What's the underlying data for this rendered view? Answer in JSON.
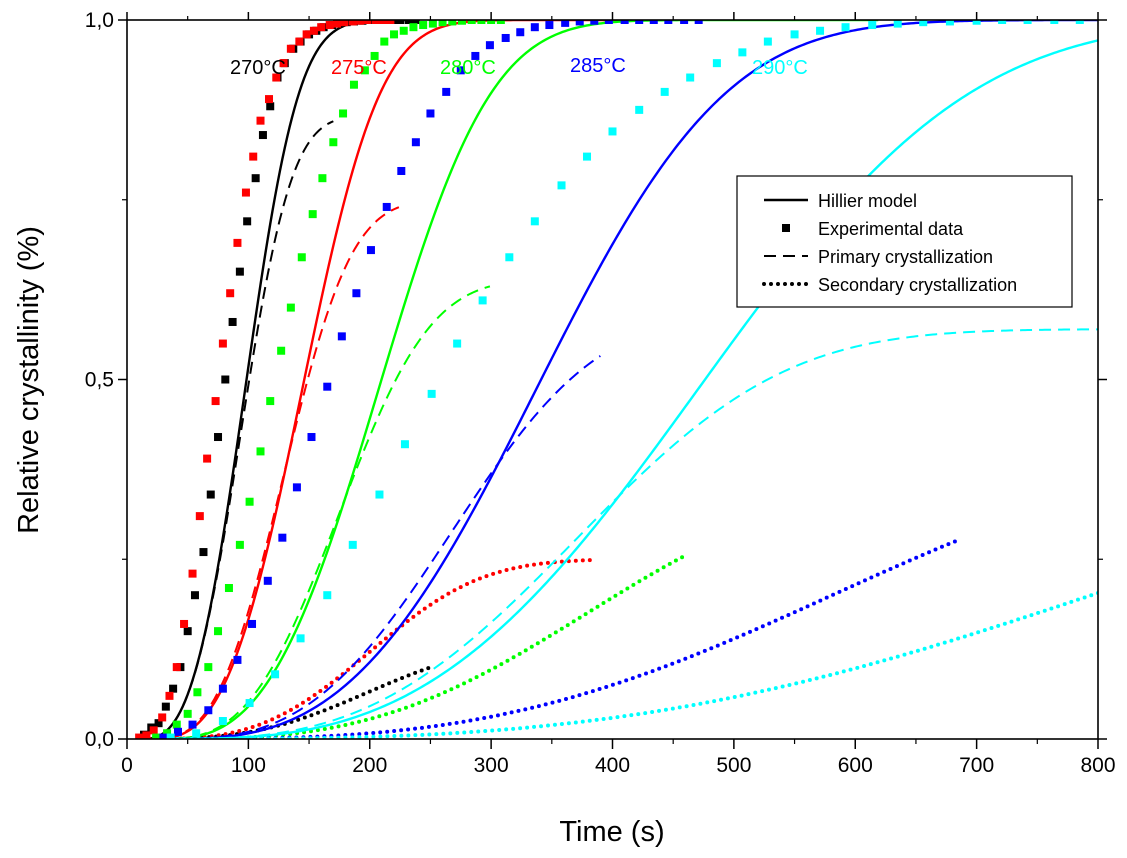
{
  "chart_data": {
    "type": "line",
    "xlabel": "Time (s)",
    "ylabel": "Relative crystallinity (%)",
    "xlim": [
      0,
      800
    ],
    "ylim": [
      0,
      1
    ],
    "x_ticks": [
      0,
      100,
      200,
      300,
      400,
      500,
      600,
      700,
      800
    ],
    "y_tick_labels": [
      {
        "value": 0,
        "label": "0,0"
      },
      {
        "value": 0.5,
        "label": "0,5"
      },
      {
        "value": 1,
        "label": "1,0"
      }
    ],
    "y_minor_ticks": [
      0.25,
      0.75
    ],
    "grid": false,
    "legend_position": "right",
    "legend": [
      {
        "label": "Hillier model",
        "style": "solid"
      },
      {
        "label": "Experimental data",
        "style": "marker"
      },
      {
        "label": "Primary crystallization",
        "style": "dashed"
      },
      {
        "label": "Secondary crystallization",
        "style": "dotted"
      }
    ],
    "series": [
      {
        "name": "270°C",
        "color": "#000000",
        "hillier": {
          "t0": 10,
          "n": 3,
          "k": 1e-06,
          "end": 240
        },
        "primary": {
          "t0": 10,
          "w": 0.867,
          "n": 3,
          "k": 1.15e-06,
          "end": 170
        },
        "secondary": {
          "t0": 10,
          "w": 0.133,
          "n": 3,
          "k": 1e-07,
          "end": 250
        },
        "experimental": [
          [
            14,
            0.006
          ],
          [
            20,
            0.016
          ],
          [
            26,
            0.022
          ],
          [
            32,
            0.045
          ],
          [
            38,
            0.07
          ],
          [
            44,
            0.1
          ],
          [
            50,
            0.15
          ],
          [
            56,
            0.2
          ],
          [
            63,
            0.26
          ],
          [
            69,
            0.34
          ],
          [
            75,
            0.42
          ],
          [
            81,
            0.5
          ],
          [
            87,
            0.58
          ],
          [
            93,
            0.65
          ],
          [
            99,
            0.72
          ],
          [
            106,
            0.78
          ],
          [
            112,
            0.84
          ],
          [
            118,
            0.88
          ],
          [
            124,
            0.92
          ],
          [
            130,
            0.94
          ],
          [
            137,
            0.96
          ],
          [
            143,
            0.97
          ],
          [
            150,
            0.98
          ],
          [
            156,
            0.985
          ],
          [
            162,
            0.99
          ],
          [
            169,
            0.993
          ],
          [
            175,
            0.995
          ],
          [
            181,
            0.997
          ],
          [
            187,
            0.998
          ],
          [
            194,
            0.999
          ],
          [
            200,
            1.0
          ],
          [
            206,
            1.0
          ],
          [
            213,
            1.0
          ],
          [
            219,
            1.0
          ],
          [
            225,
            1.0
          ],
          [
            232,
            1.0
          ],
          [
            238,
            1.0
          ]
        ]
      },
      {
        "name": "275°C",
        "color": "#ff0000",
        "hillier": {
          "t0": 18,
          "n": 3,
          "k": 3.3e-07,
          "end": 420
        },
        "primary": {
          "t0": 18,
          "w": 0.75,
          "n": 3,
          "k": 4.9e-07,
          "end": 225
        },
        "secondary": {
          "t0": 18,
          "w": 0.25,
          "n": 3,
          "k": 1.1e-07,
          "end": 385
        },
        "experimental": [
          [
            10,
            0.002
          ],
          [
            16,
            0.005
          ],
          [
            22,
            0.012
          ],
          [
            29,
            0.03
          ],
          [
            35,
            0.06
          ],
          [
            41,
            0.1
          ],
          [
            47,
            0.16
          ],
          [
            54,
            0.23
          ],
          [
            60,
            0.31
          ],
          [
            66,
            0.39
          ],
          [
            73,
            0.47
          ],
          [
            79,
            0.55
          ],
          [
            85,
            0.62
          ],
          [
            91,
            0.69
          ],
          [
            98,
            0.76
          ],
          [
            104,
            0.81
          ],
          [
            110,
            0.86
          ],
          [
            117,
            0.89
          ],
          [
            123,
            0.92
          ],
          [
            129,
            0.94
          ],
          [
            135,
            0.96
          ],
          [
            142,
            0.97
          ],
          [
            148,
            0.98
          ],
          [
            154,
            0.985
          ],
          [
            160,
            0.99
          ],
          [
            167,
            0.993
          ],
          [
            173,
            0.995
          ],
          [
            179,
            0.997
          ],
          [
            186,
            0.998
          ],
          [
            192,
            0.999
          ],
          [
            198,
            1.0
          ],
          [
            205,
            1.0
          ],
          [
            211,
            1.0
          ],
          [
            217,
            1.0
          ]
        ]
      },
      {
        "name": "280°C",
        "color": "#00ff00",
        "hillier": {
          "t0": 25,
          "n": 3,
          "k": 1.1e-07,
          "end": 620
        },
        "primary": {
          "t0": 25,
          "w": 0.64,
          "n": 3,
          "k": 2e-07,
          "end": 300
        },
        "secondary": {
          "t0": 25,
          "w": 0.36,
          "n": 3,
          "k": 1.5e-08,
          "end": 460
        },
        "experimental": [
          [
            24,
            0.002
          ],
          [
            33,
            0.008
          ],
          [
            41,
            0.02
          ],
          [
            50,
            0.035
          ],
          [
            58,
            0.065
          ],
          [
            67,
            0.1
          ],
          [
            75,
            0.15
          ],
          [
            84,
            0.21
          ],
          [
            93,
            0.27
          ],
          [
            101,
            0.33
          ],
          [
            110,
            0.4
          ],
          [
            118,
            0.47
          ],
          [
            127,
            0.54
          ],
          [
            135,
            0.6
          ],
          [
            144,
            0.67
          ],
          [
            153,
            0.73
          ],
          [
            161,
            0.78
          ],
          [
            170,
            0.83
          ],
          [
            178,
            0.87
          ],
          [
            187,
            0.91
          ],
          [
            196,
            0.93
          ],
          [
            204,
            0.95
          ],
          [
            212,
            0.97
          ],
          [
            220,
            0.98
          ],
          [
            228,
            0.985
          ],
          [
            236,
            0.99
          ],
          [
            244,
            0.993
          ],
          [
            252,
            0.995
          ],
          [
            260,
            0.997
          ],
          [
            268,
            0.998
          ],
          [
            276,
            0.999
          ],
          [
            284,
            1.0
          ],
          [
            292,
            1.0
          ],
          [
            300,
            1.0
          ],
          [
            308,
            1.0
          ]
        ]
      },
      {
        "name": "285°C",
        "color": "#0000ff",
        "hillier": {
          "t0": 30,
          "n": 3,
          "k": 2.3e-08,
          "end": 800
        },
        "primary": {
          "t0": 30,
          "w": 0.59,
          "n": 3,
          "k": 5e-08,
          "end": 390
        },
        "secondary": {
          "t0": 30,
          "w": 0.41,
          "n": 3,
          "k": 4e-09,
          "end": 685
        },
        "experimental": [
          [
            30,
            0.002
          ],
          [
            42,
            0.01
          ],
          [
            54,
            0.02
          ],
          [
            67,
            0.04
          ],
          [
            79,
            0.07
          ],
          [
            91,
            0.11
          ],
          [
            103,
            0.16
          ],
          [
            116,
            0.22
          ],
          [
            128,
            0.28
          ],
          [
            140,
            0.35
          ],
          [
            152,
            0.42
          ],
          [
            165,
            0.49
          ],
          [
            177,
            0.56
          ],
          [
            189,
            0.62
          ],
          [
            201,
            0.68
          ],
          [
            214,
            0.74
          ],
          [
            226,
            0.79
          ],
          [
            238,
            0.83
          ],
          [
            250,
            0.87
          ],
          [
            263,
            0.9
          ],
          [
            275,
            0.93
          ],
          [
            287,
            0.95
          ],
          [
            299,
            0.965
          ],
          [
            312,
            0.975
          ],
          [
            324,
            0.983
          ],
          [
            336,
            0.99
          ],
          [
            348,
            0.993
          ],
          [
            361,
            0.996
          ],
          [
            373,
            0.998
          ],
          [
            385,
            0.999
          ],
          [
            397,
            1.0
          ],
          [
            410,
            1.0
          ],
          [
            422,
            1.0
          ],
          [
            434,
            1.0
          ],
          [
            446,
            1.0
          ],
          [
            459,
            1.0
          ],
          [
            471,
            1.0
          ]
        ]
      },
      {
        "name": "290°C",
        "color": "#00ffff",
        "hillier": {
          "t0": 30,
          "n": 3,
          "k": 7.8e-09,
          "end": 800
        },
        "primary": {
          "t0": 30,
          "w": 0.57,
          "n": 3,
          "k": 1.7e-08,
          "end": 800
        },
        "secondary": {
          "t0": 30,
          "w": 0.43,
          "n": 3,
          "k": 1.4e-09,
          "end": 800
        },
        "experimental": [
          [
            36,
            0.002
          ],
          [
            57,
            0.008
          ],
          [
            79,
            0.025
          ],
          [
            101,
            0.05
          ],
          [
            122,
            0.09
          ],
          [
            143,
            0.14
          ],
          [
            165,
            0.2
          ],
          [
            186,
            0.27
          ],
          [
            208,
            0.34
          ],
          [
            229,
            0.41
          ],
          [
            251,
            0.48
          ],
          [
            272,
            0.55
          ],
          [
            293,
            0.61
          ],
          [
            315,
            0.67
          ],
          [
            336,
            0.72
          ],
          [
            358,
            0.77
          ],
          [
            379,
            0.81
          ],
          [
            400,
            0.845
          ],
          [
            422,
            0.875
          ],
          [
            443,
            0.9
          ],
          [
            464,
            0.92
          ],
          [
            486,
            0.94
          ],
          [
            507,
            0.955
          ],
          [
            528,
            0.97
          ],
          [
            550,
            0.98
          ],
          [
            571,
            0.985
          ],
          [
            592,
            0.99
          ],
          [
            614,
            0.993
          ],
          [
            635,
            0.995
          ],
          [
            656,
            0.997
          ],
          [
            678,
            0.998
          ],
          [
            700,
            0.999
          ],
          [
            721,
            1.0
          ],
          [
            742,
            1.0
          ],
          [
            764,
            1.0
          ],
          [
            785,
            1.0
          ]
        ]
      }
    ]
  }
}
